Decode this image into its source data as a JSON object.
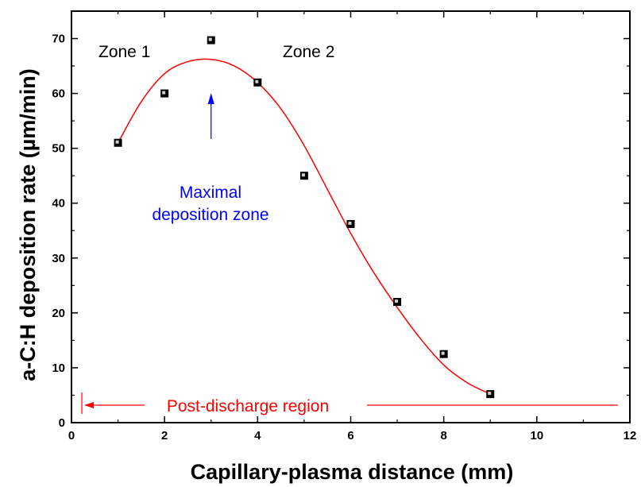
{
  "chart_data": {
    "type": "scatter",
    "title": "",
    "xlabel": "Capillary-plasma distance (mm)",
    "ylabel": "a-C:H deposition rate (µm/min)",
    "xlim": [
      0,
      12
    ],
    "ylim": [
      0,
      75
    ],
    "x_ticks": [
      0,
      2,
      4,
      6,
      8,
      10,
      12
    ],
    "y_ticks": [
      0,
      10,
      20,
      30,
      40,
      50,
      60,
      70
    ],
    "grid": false,
    "series": [
      {
        "marker": "square",
        "color": "#000000",
        "x": [
          1,
          2,
          3,
          4,
          5,
          6,
          7,
          8,
          9
        ],
        "y": [
          51,
          60,
          69.7,
          62,
          45,
          36.2,
          22,
          12.5,
          5.2
        ]
      }
    ],
    "fit_curve": {
      "color": "#ff0000",
      "x": [
        1,
        1.5,
        2,
        2.5,
        3,
        3.5,
        4,
        4.5,
        5,
        5.5,
        6,
        6.5,
        7,
        7.5,
        8,
        8.5,
        9
      ],
      "y": [
        51,
        58.5,
        63.6,
        65.8,
        66.2,
        65,
        62,
        57.2,
        50.5,
        42.5,
        34.5,
        27.3,
        21,
        15.3,
        10.5,
        7.3,
        5.2
      ]
    },
    "annotations": {
      "zone1": {
        "text": "Zone 1",
        "color": "#000000"
      },
      "zone2": {
        "text": "Zone 2",
        "color": "#000000"
      },
      "maximal_line1": {
        "text": "Maximal",
        "color": "#0000ff"
      },
      "maximal_line2": {
        "text": "deposition zone",
        "color": "#0000ff"
      },
      "arrow_color": "#0000ff",
      "post_discharge": {
        "text": "Post-discharge region",
        "color": "#ff0000"
      }
    }
  }
}
